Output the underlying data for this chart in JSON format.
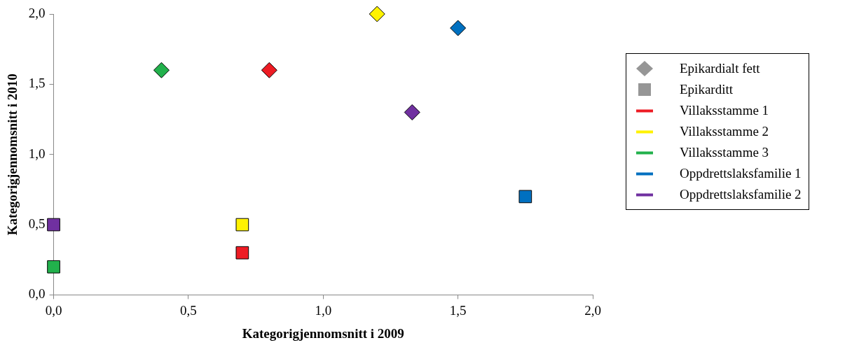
{
  "chart_data": {
    "type": "scatter",
    "xlabel": "Kategorigjennomsnitt i 2009",
    "ylabel": "Kategorigjennomsnitt i 2010",
    "xlim": [
      0,
      2
    ],
    "ylim": [
      0,
      2
    ],
    "xticks": [
      {
        "value": 0,
        "label": "0,0"
      },
      {
        "value": 0.5,
        "label": "0,5"
      },
      {
        "value": 1,
        "label": "1,0"
      },
      {
        "value": 1.5,
        "label": "1,5"
      },
      {
        "value": 2,
        "label": "2,0"
      }
    ],
    "yticks": [
      {
        "value": 0,
        "label": "0,0"
      },
      {
        "value": 0.5,
        "label": "0,5"
      },
      {
        "value": 1,
        "label": "1,0"
      },
      {
        "value": 1.5,
        "label": "1,5"
      },
      {
        "value": 2,
        "label": "2,0"
      }
    ],
    "grid": false,
    "legend": "right",
    "series": [
      {
        "name": "Epikardialt fett",
        "marker": "diamond",
        "color": "#969696",
        "x": [
          0.8,
          1.2,
          0.4,
          1.5,
          1.33
        ],
        "values": [
          1.6,
          2.0,
          1.6,
          1.9,
          1.3
        ],
        "colors": [
          "#ed1c24",
          "#fff200",
          "#22b14c",
          "#0070c0",
          "#7030a0"
        ]
      },
      {
        "name": "Epikarditt",
        "marker": "square",
        "color": "#969696",
        "x": [
          0.7,
          0.7,
          0.0,
          1.75,
          0.0
        ],
        "values": [
          0.3,
          0.5,
          0.2,
          0.7,
          0.5
        ],
        "colors": [
          "#ed1c24",
          "#fff200",
          "#22b14c",
          "#0070c0",
          "#7030a0"
        ]
      },
      {
        "name": "Villaksstamme 1",
        "type": "line",
        "color": "#ed1c24"
      },
      {
        "name": "Villaksstamme 2",
        "type": "line",
        "color": "#fff200"
      },
      {
        "name": "Villaksstamme 3",
        "type": "line",
        "color": "#22b14c"
      },
      {
        "name": "Oppdrettslaksfamilie 1",
        "type": "line",
        "color": "#0070c0"
      },
      {
        "name": "Oppdrettslaksfamilie 2",
        "type": "line",
        "color": "#7030a0"
      }
    ]
  }
}
